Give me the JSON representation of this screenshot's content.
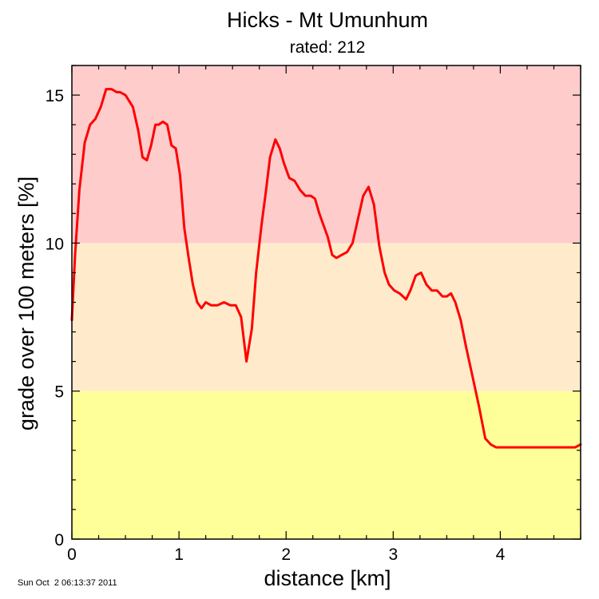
{
  "chart_data": {
    "type": "line",
    "title": "Hicks - Mt Umunhum",
    "subtitle": "rated: 212",
    "xlabel": "distance [km]",
    "ylabel": "grade over 100 meters [%]",
    "xlim": [
      0,
      4.75
    ],
    "ylim": [
      0,
      16
    ],
    "x_ticks": [
      0,
      1,
      2,
      3,
      4
    ],
    "y_ticks": [
      0,
      5,
      10,
      15
    ],
    "x_tick_labels": [
      "0",
      "1",
      "2",
      "3",
      "4"
    ],
    "y_tick_labels": [
      "0",
      "5",
      "10",
      "15"
    ],
    "grid": false,
    "bands": [
      {
        "from": 0,
        "to": 5,
        "color": "#ffff99"
      },
      {
        "from": 5,
        "to": 10,
        "color": "#ffebcc"
      },
      {
        "from": 10,
        "to": 16,
        "color": "#ffcccc"
      }
    ],
    "series": [
      {
        "color": "#ff0000",
        "x": [
          0.0,
          0.03,
          0.07,
          0.12,
          0.17,
          0.22,
          0.27,
          0.32,
          0.37,
          0.42,
          0.45,
          0.5,
          0.57,
          0.62,
          0.66,
          0.7,
          0.74,
          0.78,
          0.81,
          0.85,
          0.89,
          0.93,
          0.97,
          1.01,
          1.05,
          1.09,
          1.13,
          1.17,
          1.21,
          1.25,
          1.3,
          1.36,
          1.42,
          1.48,
          1.53,
          1.58,
          1.63,
          1.68,
          1.72,
          1.77,
          1.81,
          1.85,
          1.9,
          1.94,
          1.98,
          2.03,
          2.08,
          2.13,
          2.18,
          2.23,
          2.27,
          2.31,
          2.35,
          2.39,
          2.43,
          2.47,
          2.52,
          2.57,
          2.62,
          2.67,
          2.72,
          2.77,
          2.82,
          2.87,
          2.92,
          2.96,
          3.01,
          3.06,
          3.12,
          3.16,
          3.21,
          3.26,
          3.31,
          3.36,
          3.41,
          3.46,
          3.5,
          3.54,
          3.58,
          3.63,
          3.68,
          3.74,
          3.8,
          3.86,
          3.91,
          3.96,
          4.01,
          4.06,
          4.11,
          4.16,
          4.21,
          4.26,
          4.31,
          4.36,
          4.41,
          4.46,
          4.5,
          4.55,
          4.6,
          4.65,
          4.7,
          4.75
        ],
        "values": [
          7.4,
          9.6,
          11.8,
          13.4,
          14.0,
          14.2,
          14.6,
          15.2,
          15.2,
          15.1,
          15.1,
          15.0,
          14.6,
          13.8,
          12.9,
          12.8,
          13.3,
          14.0,
          14.0,
          14.1,
          14.0,
          13.3,
          13.2,
          12.3,
          10.5,
          9.5,
          8.6,
          8.0,
          7.8,
          8.0,
          7.9,
          7.9,
          8.0,
          7.9,
          7.9,
          7.5,
          6.0,
          7.1,
          9.0,
          10.6,
          11.7,
          12.9,
          13.5,
          13.2,
          12.7,
          12.2,
          12.1,
          11.8,
          11.6,
          11.6,
          11.5,
          11.0,
          10.6,
          10.2,
          9.6,
          9.5,
          9.6,
          9.7,
          10.0,
          10.8,
          11.6,
          11.9,
          11.3,
          9.9,
          9.0,
          8.6,
          8.4,
          8.3,
          8.1,
          8.4,
          8.9,
          9.0,
          8.6,
          8.4,
          8.4,
          8.2,
          8.2,
          8.3,
          8.0,
          7.4,
          6.5,
          5.5,
          4.5,
          3.4,
          3.2,
          3.1,
          3.1,
          3.1,
          3.1,
          3.1,
          3.1,
          3.1,
          3.1,
          3.1,
          3.1,
          3.1,
          3.1,
          3.1,
          3.1,
          3.1,
          3.1,
          3.2
        ]
      }
    ]
  },
  "timestamp": "Sun Oct  2 06:13:37 2011"
}
